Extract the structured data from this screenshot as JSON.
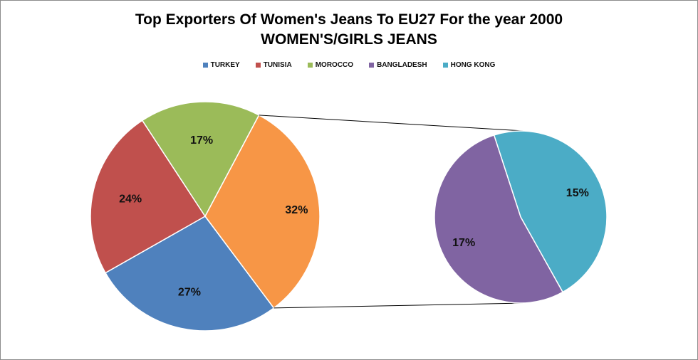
{
  "chart_data": {
    "type": "pie",
    "subtype": "pie-of-pie",
    "title": "Top Exporters Of Women's Jeans To EU27 For the year 2000",
    "subtitle": "WOMEN'S/GIRLS  JEANS",
    "legend_position": "top",
    "slices": [
      {
        "name": "TURKEY",
        "value": 27,
        "label": "27%",
        "color": "#4f81bd"
      },
      {
        "name": "TUNISIA",
        "value": 24,
        "label": "24%",
        "color": "#c0504d"
      },
      {
        "name": "MOROCCO",
        "value": 17,
        "label": "17%",
        "color": "#9bbb59"
      },
      {
        "name": "BANGLADESH",
        "value": 17,
        "label": "17%",
        "color": "#8064a2"
      },
      {
        "name": "HONG KONG",
        "value": 15,
        "label": "15%",
        "color": "#4bacc6"
      }
    ],
    "aggregate_slice": {
      "value": 32,
      "label": "32%",
      "color": "#f79646"
    },
    "secondary_members": [
      "BANGLADESH",
      "HONG KONG"
    ]
  }
}
